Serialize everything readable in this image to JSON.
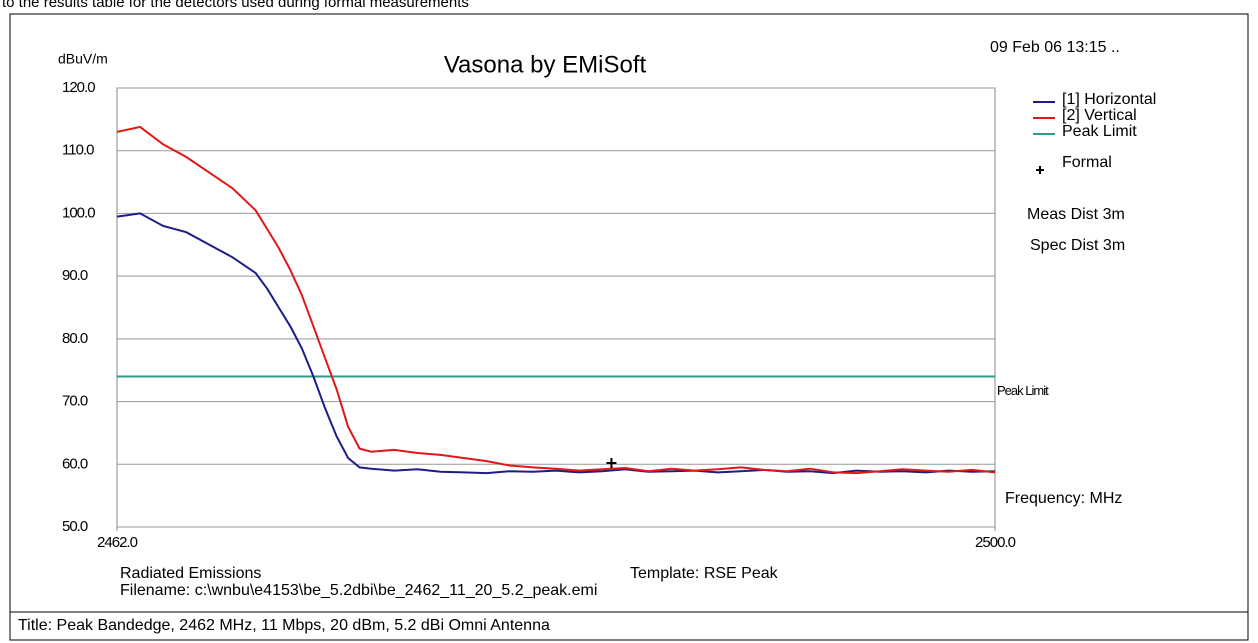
{
  "document": {
    "intro": "to the results table for the detectors used during formal measurements",
    "caption": "Title: Peak Bandedge, 2462 MHz, 11 Mbps, 20 dBm, 5.2 dBi Omni Antenna"
  },
  "chart_data": {
    "type": "line",
    "title": "Vasona by EMiSoft",
    "y_label": "dBuV/m",
    "x_label": "Frequency: MHz",
    "timestamp": "09 Feb 06 13:15 ..",
    "notes": [
      "Meas Dist 3m",
      "Spec Dist 3m"
    ],
    "footer_left": [
      "Radiated Emissions",
      "Filename: c:\\wnbu\\e4153\\be_5.2dbi\\be_2462_11_20_5.2_peak.emi"
    ],
    "footer_right": "Template: RSE Peak",
    "x": [
      2462,
      2463,
      2464,
      2465,
      2466,
      2467,
      2468,
      2468.5,
      2469,
      2469.5,
      2470,
      2470.5,
      2471,
      2471.5,
      2472,
      2472.5,
      2473,
      2474,
      2475,
      2476,
      2477,
      2478,
      2479,
      2480,
      2481,
      2482,
      2483,
      2484,
      2485,
      2486,
      2487,
      2488,
      2489,
      2490,
      2491,
      2492,
      2493,
      2494,
      2495,
      2496,
      2497,
      2498,
      2499,
      2500
    ],
    "series": [
      {
        "name": "[1] Horizontal",
        "color": "#1c1c8a",
        "values": [
          99.5,
          100,
          98,
          97,
          95,
          93,
          90.5,
          88,
          85,
          82,
          78.5,
          74,
          69,
          64.5,
          61,
          59.5,
          59.3,
          59,
          59.2,
          58.8,
          58.7,
          58.6,
          58.9,
          58.8,
          59,
          58.7,
          58.9,
          59.2,
          58.8,
          58.9,
          59,
          58.7,
          58.9,
          59.1,
          58.8,
          58.9,
          58.6,
          59,
          58.8,
          58.9,
          58.7,
          59,
          58.8,
          58.9
        ]
      },
      {
        "name": "[2] Vertical",
        "color": "#e01818",
        "values": [
          113,
          113.8,
          111,
          109,
          106.5,
          104,
          100.5,
          97.5,
          94.5,
          91,
          87,
          82,
          77,
          72,
          66,
          62.5,
          62,
          62.3,
          61.8,
          61.5,
          61,
          60.5,
          59.8,
          59.5,
          59.3,
          59,
          59.2,
          59.4,
          58.9,
          59.3,
          59,
          59.2,
          59.5,
          59.1,
          58.9,
          59.3,
          58.7,
          58.6,
          58.9,
          59.2,
          59,
          58.8,
          59.1,
          58.7
        ]
      }
    ],
    "limit": {
      "name": "Peak Limit",
      "label": "Peak Limit",
      "value": 74,
      "color": "#2a9a8a"
    },
    "formal": {
      "name": "Formal",
      "x": [
        2483.4
      ],
      "values": [
        60.2
      ],
      "color": "#000000"
    },
    "xlim": [
      2462,
      2500
    ],
    "xticks": [
      {
        "value": 2462,
        "label": "2462.0"
      },
      {
        "value": 2500,
        "label": "2500.0"
      }
    ],
    "ylim": [
      50,
      120
    ],
    "yticks": [
      {
        "value": 50,
        "label": "50.0"
      },
      {
        "value": 60,
        "label": "60.0"
      },
      {
        "value": 70,
        "label": "70.0"
      },
      {
        "value": 80,
        "label": "80.0"
      },
      {
        "value": 90,
        "label": "90.0"
      },
      {
        "value": 100,
        "label": "100.0"
      },
      {
        "value": 110,
        "label": "110.0"
      },
      {
        "value": 120,
        "label": "120.0"
      }
    ],
    "grid": true
  }
}
